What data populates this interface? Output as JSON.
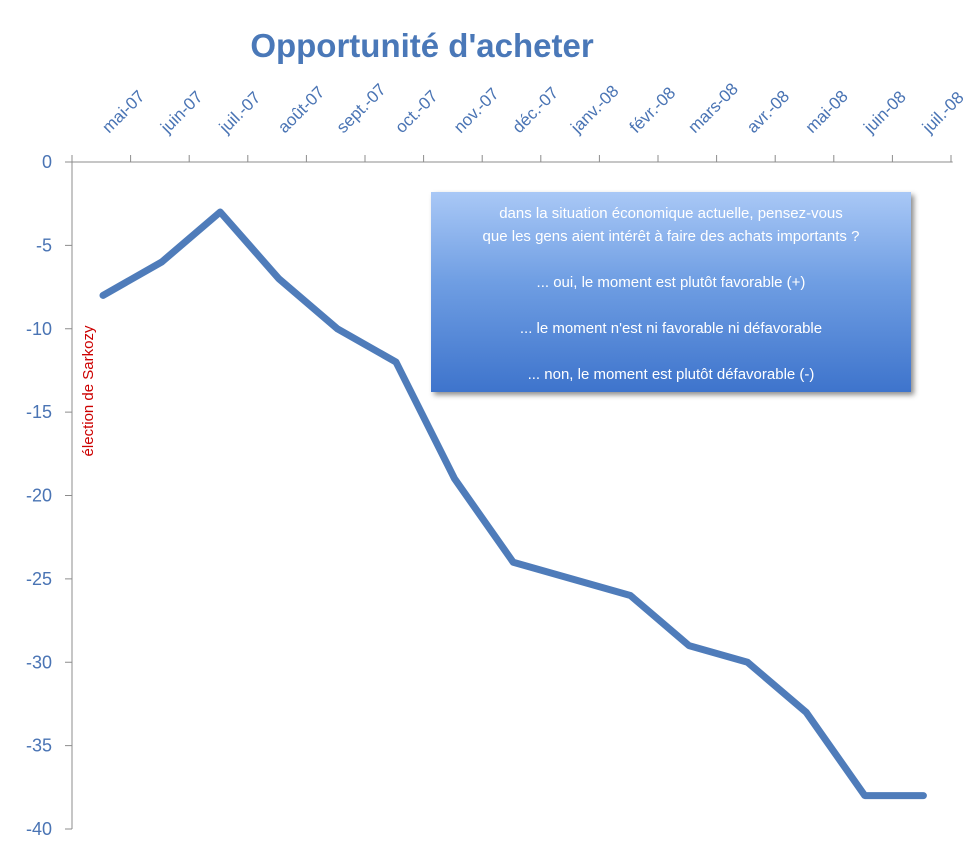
{
  "chart_data": {
    "type": "line",
    "title": "Opportunité d'acheter",
    "categories": [
      "mai-07",
      "juin-07",
      "juil.-07",
      "août-07",
      "sept.-07",
      "oct.-07",
      "nov.-07",
      "déc.-07",
      "janv.-08",
      "févr.-08",
      "mars-08",
      "avr.-08",
      "mai-08",
      "juin-08",
      "juil.-08"
    ],
    "series": [
      {
        "values": [
          -8,
          -6,
          -3,
          -7,
          -10,
          -12,
          -19,
          -24,
          -25,
          -26,
          -29,
          -30,
          -33,
          -38,
          -38
        ],
        "color": "#4f7cba"
      }
    ],
    "ylim": [
      -40,
      0
    ],
    "yticks": [
      0,
      -5,
      -10,
      -15,
      -20,
      -25,
      -30,
      -35,
      -40
    ],
    "grid": false,
    "x_axis_position": "top",
    "annotation": {
      "text": "élection de Sarkozy",
      "at_category": "mai-07",
      "color": "#cc0000"
    },
    "legend_box": {
      "question_line1": "dans la situation économique actuelle, pensez-vous",
      "question_line2": "que les gens aient intérêt à faire des achats importants ?",
      "option_positive": "... oui, le moment est plutôt favorable (+)",
      "option_neutral": "... le moment n'est ni favorable ni défavorable",
      "option_negative": "... non, le moment est plutôt défavorable (-)",
      "colors": [
        "#a9c8f6",
        "#3e74cc"
      ]
    }
  }
}
